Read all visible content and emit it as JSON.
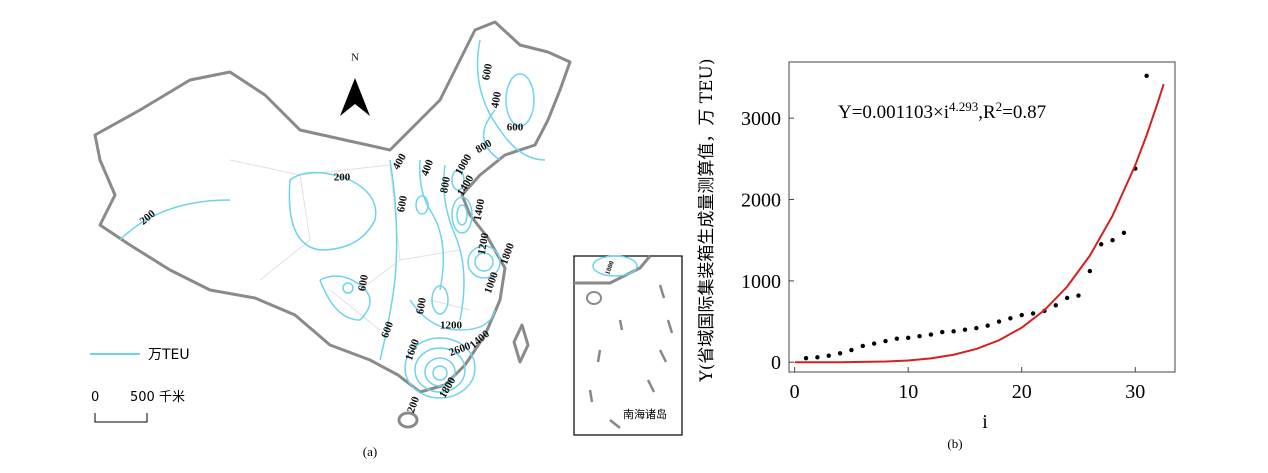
{
  "map": {
    "north": "N",
    "contour_labels": [
      "600",
      "400",
      "600",
      "800",
      "400",
      "400",
      "1000",
      "800",
      "1400",
      "1400",
      "200",
      "200",
      "1200",
      "1800",
      "600",
      "600",
      "600",
      "1000",
      "600",
      "1200",
      "1600",
      "2600",
      "1400",
      "1800",
      "200",
      "1800"
    ],
    "legend": "万TEU",
    "scale": [
      "0",
      "500 千米"
    ],
    "caption": "(a)",
    "inset_label": "南海诸岛"
  },
  "chart_data": {
    "type": "scatter",
    "caption": "(b)",
    "xlabel": "i",
    "ylabel": "Y(省域国际集装箱生成量测算值，万 TEU)",
    "annotation": [
      "Y=0.001103×i",
      "4.293",
      ",R",
      "2",
      "=0.87"
    ],
    "xlim": [
      -0.5,
      33.5
    ],
    "ylim": [
      -120,
      3690
    ],
    "xticks": [
      0,
      10,
      20,
      30
    ],
    "yticks": [
      0,
      1000,
      2000,
      3000
    ],
    "series": [
      {
        "mark": "dot",
        "color": "#000000",
        "x": [
          1,
          2,
          3,
          4,
          5,
          6,
          7,
          8,
          9,
          10,
          11,
          12,
          13,
          14,
          15,
          16,
          17,
          18,
          19,
          20,
          21,
          22,
          23,
          24,
          25,
          26,
          27,
          28,
          29,
          30,
          31
        ],
        "values": [
          50,
          60,
          80,
          110,
          150,
          200,
          230,
          260,
          290,
          300,
          320,
          340,
          370,
          380,
          400,
          420,
          450,
          500,
          540,
          580,
          600,
          630,
          700,
          790,
          820,
          1120,
          1450,
          1500,
          1590,
          2380,
          3520
        ]
      },
      {
        "mark": "line",
        "color": "#d42020",
        "x": [
          0,
          4,
          8,
          10,
          12,
          14,
          16,
          18,
          20,
          22,
          24,
          26,
          28,
          30,
          31,
          32,
          32.5
        ],
        "values": [
          0,
          0.42,
          8.3,
          21.6,
          47.4,
          91.9,
          163,
          270,
          425,
          640,
          929,
          1310,
          1801,
          2422,
          2790,
          3199,
          3418
        ]
      }
    ]
  }
}
